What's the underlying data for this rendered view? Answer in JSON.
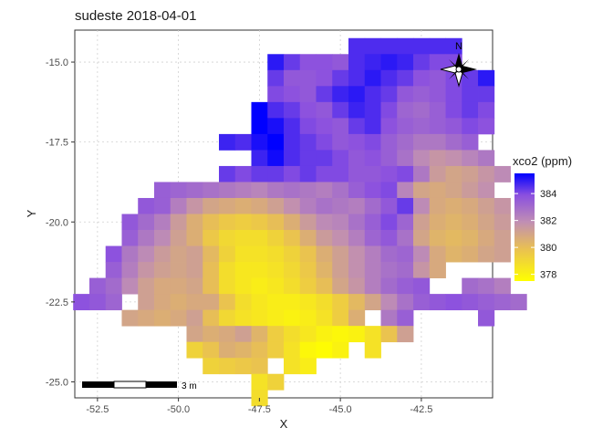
{
  "chart_data": {
    "type": "heatmap",
    "title": "sudeste 2018-04-01",
    "xlabel": "X",
    "ylabel": "Y",
    "xlim": [
      -53.2,
      -40.3
    ],
    "ylim": [
      -25.5,
      -14.0
    ],
    "xticks": [
      -52.5,
      -50.0,
      -47.5,
      -45.0,
      -42.5
    ],
    "yticks": [
      -15.0,
      -17.5,
      -20.0,
      -22.5,
      -25.0
    ],
    "x_tick_labels": [
      "-52.5",
      "-50.0",
      "-47.5",
      "-45.0",
      "-42.5"
    ],
    "y_tick_labels": [
      "-15.0",
      "-17.5",
      "-20.0",
      "-22.5",
      "-25.0"
    ],
    "grid": true,
    "cell_size": 0.5,
    "legend": {
      "title": "xco2 (ppm)",
      "placement": "right",
      "min": 377.5,
      "max": 385.5,
      "ticks": [
        384,
        382,
        380,
        378
      ],
      "tick_labels": [
        "384",
        "382",
        "380",
        "378"
      ]
    },
    "colors": {
      "low": "#ffff00",
      "mid": "#dba06e",
      "high": "#5a2cff",
      "max": "#0000ff"
    },
    "north_arrow_label": "N",
    "scale_bar_label": "3 m",
    "rows": [
      {
        "y": -14.5,
        "x_start": -44.5,
        "values": [
          384.6,
          384.6,
          384.6,
          384.6,
          384.6,
          384.6,
          384.6
        ]
      },
      {
        "y": -15.0,
        "x_start": -47.0,
        "values": [
          385.0,
          384.3,
          383.8,
          383.8,
          383.6,
          384.6,
          384.8,
          385.0,
          384.8,
          384.3,
          384.0,
          384.0
        ]
      },
      {
        "y": -15.5,
        "x_start": -47.0,
        "values": [
          384.3,
          383.6,
          383.6,
          383.8,
          384.3,
          384.6,
          385.0,
          384.6,
          384.3,
          383.8,
          383.6,
          384.0,
          384.3,
          385.0
        ]
      },
      {
        "y": -16.0,
        "x_start": -47.0,
        "values": [
          384.0,
          383.8,
          383.6,
          384.3,
          384.8,
          385.0,
          384.6,
          384.3,
          383.6,
          383.4,
          383.6,
          384.0,
          384.3,
          384.3
        ]
      },
      {
        "y": -16.5,
        "x_start": -47.5,
        "values": [
          385.5,
          384.6,
          384.3,
          383.8,
          383.6,
          384.3,
          384.8,
          384.6,
          384.0,
          383.2,
          383.0,
          383.4,
          384.0,
          384.3,
          384.0
        ]
      },
      {
        "y": -17.0,
        "x_start": -47.5,
        "values": [
          385.5,
          385.2,
          384.6,
          384.0,
          383.8,
          383.6,
          384.3,
          384.6,
          383.8,
          383.4,
          383.2,
          383.4,
          383.6,
          384.0,
          383.8
        ]
      },
      {
        "y": -17.5,
        "x_start": -48.5,
        "values": [
          384.8,
          384.6,
          385.2,
          385.5,
          384.6,
          384.3,
          384.0,
          383.6,
          383.8,
          384.0,
          383.4,
          383.0,
          382.6,
          382.6,
          383.0,
          383.4
        ]
      },
      {
        "y": -18.0,
        "x_start": -47.5,
        "values": [
          384.8,
          385.3,
          384.6,
          384.3,
          384.3,
          384.0,
          383.6,
          383.8,
          383.4,
          382.8,
          382.0,
          381.6,
          381.8,
          382.2,
          382.6
        ]
      },
      {
        "y": -18.5,
        "x_start": -48.5,
        "values": [
          384.3,
          384.0,
          384.3,
          384.3,
          384.0,
          384.3,
          384.0,
          384.0,
          383.6,
          383.6,
          383.8,
          384.0,
          382.6,
          381.4,
          381.0,
          381.2,
          381.6,
          382.0
        ]
      },
      {
        "y": -19.0,
        "x_start": -50.5,
        "values": [
          383.4,
          383.2,
          383.0,
          382.8,
          382.6,
          382.4,
          382.2,
          382.6,
          382.8,
          382.6,
          382.4,
          382.8,
          383.4,
          383.8,
          384.0,
          382.2,
          381.0,
          380.8,
          381.0,
          381.4,
          381.8
        ]
      },
      {
        "y": -19.5,
        "x_start": -51.0,
        "values": [
          383.6,
          383.4,
          382.4,
          381.6,
          381.0,
          380.8,
          380.6,
          380.8,
          381.2,
          381.8,
          382.4,
          382.8,
          382.6,
          382.4,
          383.0,
          383.6,
          384.3,
          382.0,
          380.8,
          380.6,
          380.8,
          381.2,
          381.6
        ]
      },
      {
        "y": -20.0,
        "x_start": -51.5,
        "values": [
          383.6,
          383.0,
          382.4,
          381.4,
          380.6,
          380.0,
          379.6,
          379.4,
          379.6,
          380.0,
          380.6,
          381.4,
          382.0,
          382.2,
          382.8,
          383.4,
          384.0,
          383.2,
          381.2,
          380.6,
          380.4,
          380.6,
          381.0,
          381.4
        ]
      },
      {
        "y": -20.5,
        "x_start": -51.5,
        "values": [
          383.4,
          382.6,
          382.0,
          381.2,
          380.6,
          379.6,
          379.0,
          378.8,
          378.8,
          379.2,
          379.8,
          380.6,
          381.4,
          381.8,
          382.4,
          383.2,
          383.6,
          382.8,
          381.0,
          380.4,
          380.2,
          380.4,
          380.8,
          381.2
        ]
      },
      {
        "y": -21.0,
        "x_start": -52.0,
        "values": [
          383.8,
          382.6,
          382.0,
          381.4,
          381.0,
          381.2,
          380.2,
          379.2,
          378.6,
          378.6,
          378.8,
          379.2,
          379.8,
          380.6,
          381.2,
          381.8,
          382.4,
          383.0,
          383.2,
          382.0,
          380.8,
          380.4,
          380.6,
          381.0,
          381.2
        ]
      },
      {
        "y": -21.5,
        "x_start": -52.0,
        "values": [
          383.4,
          382.4,
          381.6,
          381.2,
          381.0,
          381.2,
          380.0,
          378.8,
          378.4,
          378.4,
          378.6,
          379.0,
          379.6,
          380.4,
          381.2,
          381.8,
          382.4,
          382.8,
          383.0,
          381.6,
          380.8
        ]
      },
      {
        "y": -22.0,
        "x_start": -52.5,
        "values": [
          383.4,
          383.0,
          382.0,
          381.2,
          380.8,
          380.8,
          381.0,
          380.0,
          378.8,
          378.4,
          378.2,
          378.4,
          378.8,
          379.4,
          380.0,
          381.0,
          381.6,
          382.4,
          383.0,
          383.4,
          383.6,
          null,
          null,
          383.0,
          382.8,
          382.4
        ]
      },
      {
        "y": -22.5,
        "x_start": -53.0,
        "values": [
          383.8,
          383.6,
          383.2,
          null,
          381.2,
          380.8,
          380.6,
          380.8,
          380.8,
          379.8,
          378.8,
          378.4,
          378.2,
          378.2,
          378.4,
          378.8,
          379.4,
          380.2,
          381.0,
          382.0,
          382.8,
          383.4,
          383.6,
          383.8,
          383.6,
          383.4,
          383.2,
          383.0
        ]
      },
      {
        "y": -23.0,
        "x_start": -51.5,
        "values": [
          381.0,
          380.8,
          380.6,
          380.8,
          381.2,
          380.0,
          379.0,
          378.6,
          378.4,
          378.2,
          378.0,
          378.2,
          378.6,
          379.4,
          380.6,
          null,
          382.6,
          383.4,
          null,
          null,
          null,
          null,
          383.6
        ]
      },
      {
        "y": -23.5,
        "x_start": -49.5,
        "values": [
          381.0,
          380.6,
          380.8,
          381.2,
          380.4,
          379.4,
          378.8,
          378.4,
          378.0,
          377.8,
          378.0,
          378.6,
          379.8,
          381.2
        ]
      },
      {
        "y": -24.0,
        "x_start": -49.5,
        "values": [
          379.2,
          379.8,
          380.6,
          380.4,
          380.0,
          379.4,
          378.6,
          377.8,
          377.6,
          378.0,
          null,
          378.6
        ]
      },
      {
        "y": -24.5,
        "x_start": -49.0,
        "values": [
          379.2,
          379.4,
          379.6,
          379.8,
          null,
          378.6,
          378.2,
          null,
          null
        ]
      },
      {
        "y": -25.0,
        "x_start": -48.0,
        "values": [
          null,
          378.6,
          379.2
        ]
      },
      {
        "y": -25.5,
        "x_start": -47.5,
        "values": [
          378.8
        ]
      }
    ]
  }
}
